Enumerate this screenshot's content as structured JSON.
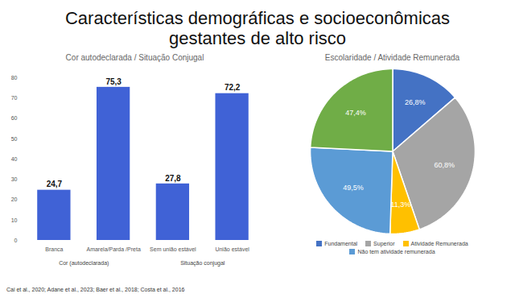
{
  "title": "Características demográficas e socioeconômicas gestantes de alto risco",
  "caption": "Cai et al., 2020; Adane et al., 2023; Baer et al., 2018; Costa et al., 2016",
  "chart_data": [
    {
      "type": "bar",
      "title": "Cor autodeclarada / Situação Conjugal",
      "categories": [
        "Branca",
        "Amarela/Parda /Preta",
        "Sem união estável",
        "União estável"
      ],
      "values": [
        24.7,
        75.3,
        27.8,
        72.2
      ],
      "value_labels": [
        "24,7",
        "75,3",
        "27,8",
        "72,2"
      ],
      "x_groups": [
        {
          "label": "Cor (autodeclarada)",
          "categories": [
            "Branca",
            "Amarela/Parda /Preta"
          ]
        },
        {
          "label": "Situação conjugal",
          "categories": [
            "Sem união estável",
            "União estável"
          ]
        }
      ],
      "color": "#4062d6",
      "ylim": [
        0,
        80
      ],
      "yticks": [
        0,
        10,
        20,
        30,
        40,
        50,
        60,
        70,
        80
      ],
      "grid": false,
      "data_labels": true
    },
    {
      "type": "pie",
      "title": "Escolaridade / Atividade Remunerada",
      "categories": [
        "Fundamental",
        "Superior",
        "Atividade Remunerada",
        "Não tem atividade remunerada",
        null
      ],
      "values": [
        26.8,
        60.8,
        11.3,
        49.5,
        47.4
      ],
      "value_labels": [
        "26,8%",
        "60,8%",
        "11,3%",
        "49,5%",
        "47,4%"
      ],
      "colors": [
        "#4472c4",
        "#a5a5a5",
        "#ffc000",
        "#5b9bd5",
        "#70ad47"
      ],
      "legend": "bottom",
      "data_labels": true
    }
  ]
}
